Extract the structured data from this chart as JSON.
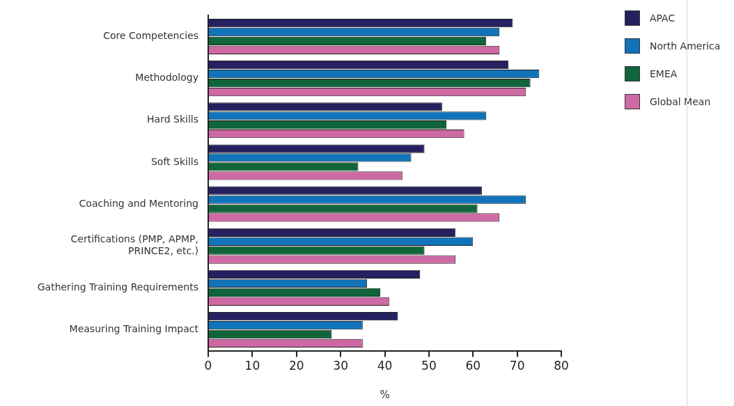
{
  "chart_data": {
    "type": "bar",
    "orientation": "horizontal",
    "categories": [
      "Core Competencies",
      "Methodology",
      "Hard Skills",
      "Soft Skills",
      "Coaching and Mentoring",
      "Certifications (PMP, APMP, PRINCE2, etc.)",
      "Gathering Training Requirements",
      "Measuring Training Impact"
    ],
    "series": [
      {
        "name": "APAC",
        "color": "#252160",
        "values": [
          69,
          68,
          53,
          49,
          62,
          56,
          48,
          43
        ]
      },
      {
        "name": "North America",
        "color": "#1174bb",
        "values": [
          66,
          75,
          63,
          46,
          72,
          60,
          36,
          35
        ]
      },
      {
        "name": "EMEA",
        "color": "#10653a",
        "values": [
          63,
          73,
          54,
          34,
          61,
          49,
          39,
          28
        ]
      },
      {
        "name": "Global Mean",
        "color": "#cf69a3",
        "values": [
          66,
          72,
          58,
          44,
          66,
          56,
          41,
          35
        ]
      }
    ],
    "xlim": [
      0,
      80
    ],
    "xticks": [
      0,
      10,
      20,
      30,
      40,
      50,
      60,
      70,
      80
    ],
    "xlabel": "%",
    "grid": false,
    "legend": "top right"
  }
}
